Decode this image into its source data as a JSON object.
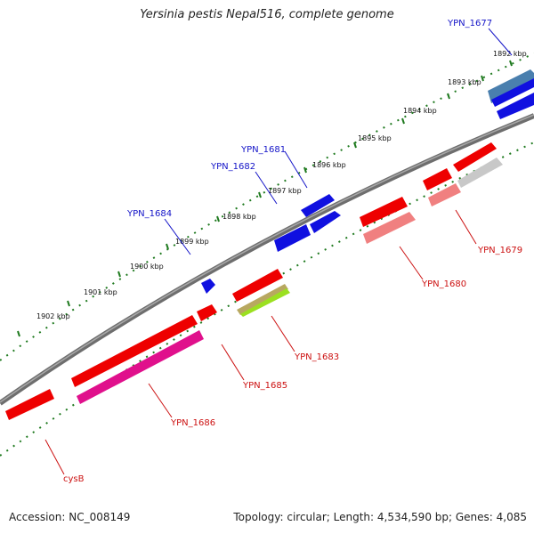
{
  "title": "Yersinia pestis Nepal516, complete genome",
  "footer": {
    "accession": "Accession: NC_008149",
    "summary": "Topology: circular; Length: 4,534,590 bp; Genes: 4,085"
  },
  "colors": {
    "backbone": "#777777",
    "tick": "#1f7a1f",
    "label_forward": "#1414c8",
    "label_reverse": "#cc1111"
  },
  "kbp_labels": [
    "1892 kbp",
    "1893 kbp",
    "1894 kbp",
    "1895 kbp",
    "1896 kbp",
    "1897 kbp",
    "1898 kbp",
    "1899 kbp",
    "1900 kbp",
    "1901 kbp",
    "1902 kbp"
  ],
  "gene_labels": {
    "ypn_1677": "YPN_1677",
    "ypn_1679": "YPN_1679",
    "ypn_1680": "YPN_1680",
    "ypn_1681": "YPN_1681",
    "ypn_1682": "YPN_1682",
    "ypn_1683": "YPN_1683",
    "ypn_1684": "YPN_1684",
    "ypn_1685": "YPN_1685",
    "ypn_1686": "YPN_1686",
    "cysb": "cysB"
  }
}
